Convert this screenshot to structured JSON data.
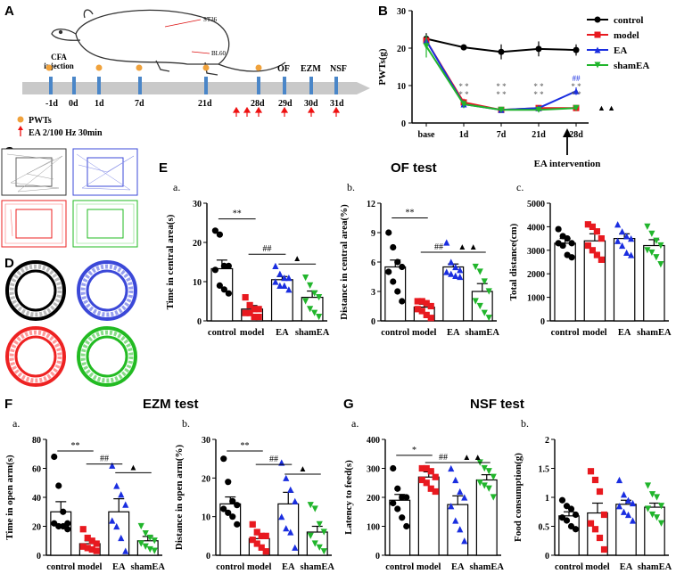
{
  "panels": {
    "A": "A",
    "B": "B",
    "C": "C",
    "D": "D",
    "E": "E",
    "F": "F",
    "G": "G"
  },
  "schematic": {
    "acupoints": [
      "ST36",
      "BL60"
    ],
    "timeline": [
      "-1d",
      "0d",
      "1d",
      "7d",
      "21d",
      "28d",
      "29d",
      "30d",
      "31d"
    ],
    "cfa_label": "CFA\ninjection",
    "tests": [
      "OF",
      "EZM",
      "NSF"
    ],
    "legend_pwts": "PWTs",
    "legend_ea": "EA 2/100 Hz  30min"
  },
  "groups": [
    "control",
    "model",
    "EA",
    "shamEA"
  ],
  "colors": {
    "control": "#000000",
    "model": "#e8191f",
    "EA": "#1a2ee0",
    "shamEA": "#21b52c"
  },
  "titles": {
    "of": "OF test",
    "ezm": "EZM test",
    "nsf": "NSF test"
  },
  "chart_data": [
    {
      "id": "B",
      "type": "line",
      "ylabel": "PWTs(g)",
      "categories": [
        "base",
        "1d",
        "7d",
        "21d",
        "28d"
      ],
      "ylim": [
        0,
        30
      ],
      "yticks": [
        0,
        10,
        20,
        30
      ],
      "series": [
        {
          "name": "control",
          "values": [
            22.5,
            20.2,
            19,
            19.8,
            19.5
          ],
          "err": [
            1.5,
            0.8,
            2,
            2,
            1.5
          ]
        },
        {
          "name": "model",
          "values": [
            22,
            5.5,
            3.5,
            4,
            4
          ],
          "err": [
            1.5,
            1,
            0.5,
            0.5,
            0.5
          ]
        },
        {
          "name": "EA",
          "values": [
            22,
            5,
            3.5,
            4,
            8.5
          ],
          "err": [
            1.5,
            1,
            0.5,
            0.5,
            1
          ]
        },
        {
          "name": "shamEA",
          "values": [
            20.5,
            5,
            3.5,
            3.5,
            4
          ],
          "err": [
            3,
            1,
            0.5,
            0.5,
            0.5
          ]
        }
      ],
      "annotation": "EA intervention",
      "sig": [
        {
          "cat": 1,
          "text": "* *\n* *"
        },
        {
          "cat": 2,
          "text": "* *\n* *"
        },
        {
          "cat": 3,
          "text": "* *\n* *"
        },
        {
          "cat": 4,
          "text": "##\n* *\n* *"
        }
      ],
      "tri": "▲ ▲"
    },
    {
      "id": "Ea",
      "type": "scatter",
      "sublabel": "a.",
      "ylabel": "Time in central area(s)",
      "categories": [
        "control",
        "model",
        "EA",
        "shamEA"
      ],
      "ylim": [
        0,
        30
      ],
      "yticks": [
        0,
        10,
        20,
        30
      ],
      "means": [
        13.3,
        3,
        10.5,
        6
      ],
      "sem": [
        2.2,
        0.9,
        0.8,
        1.6
      ],
      "points": [
        [
          23,
          22,
          14,
          14,
          13,
          9,
          8,
          7
        ],
        [
          6,
          4,
          3,
          3,
          2,
          2,
          1,
          1
        ],
        [
          14,
          12,
          11,
          11,
          10,
          9,
          9,
          8
        ],
        [
          11,
          9,
          7,
          6,
          5,
          3,
          2,
          1
        ]
      ],
      "sig": [
        {
          "a": 0,
          "b": 1,
          "text": "**",
          "y": 26
        },
        {
          "a": 1,
          "b": 2,
          "text": "##",
          "y": 17
        },
        {
          "a": 2,
          "b": 3,
          "text": "▲",
          "y": 14.5
        }
      ]
    },
    {
      "id": "Eb",
      "type": "scatter",
      "sublabel": "b.",
      "ylabel": "Distance in central area(%)",
      "categories": [
        "control",
        "model",
        "EA",
        "shamEA"
      ],
      "ylim": [
        0,
        12
      ],
      "yticks": [
        0,
        3,
        6,
        9,
        12
      ],
      "means": [
        5.5,
        1.4,
        5.5,
        3
      ],
      "sem": [
        0.7,
        0.3,
        0.3,
        0.8
      ],
      "points": [
        [
          9,
          7.5,
          6,
          5.5,
          5,
          4,
          3,
          2
        ],
        [
          2,
          2,
          1.8,
          1.5,
          1.2,
          1,
          0.6,
          0.3
        ],
        [
          8,
          6,
          5.5,
          5.2,
          5,
          4.8,
          4.6,
          4.5
        ],
        [
          5.5,
          5,
          4,
          3,
          2,
          1.5,
          0.8,
          0.3
        ]
      ],
      "sig": [
        {
          "a": 0,
          "b": 1,
          "text": "**",
          "y": 10.5
        },
        {
          "a": 1,
          "b": 2,
          "text": "##",
          "y": 7
        },
        {
          "a": 2,
          "b": 3,
          "text": "▲ ▲",
          "y": 7
        }
      ]
    },
    {
      "id": "Ec",
      "type": "scatter",
      "sublabel": "c.",
      "ylabel": "Total distance(cm)",
      "categories": [
        "control",
        "model",
        "EA",
        "shamEA"
      ],
      "ylim": [
        0,
        5000
      ],
      "yticks": [
        0,
        1000,
        2000,
        3000,
        4000,
        5000
      ],
      "means": [
        3300,
        3400,
        3500,
        3200
      ],
      "sem": [
        200,
        300,
        200,
        250
      ],
      "points": [
        [
          3900,
          3600,
          3500,
          3300,
          3300,
          3200,
          2800,
          2700
        ],
        [
          4100,
          4000,
          3800,
          3500,
          3200,
          3000,
          2800,
          2600
        ],
        [
          4100,
          3800,
          3600,
          3500,
          3400,
          3200,
          2900,
          2800
        ],
        [
          4000,
          3700,
          3400,
          3200,
          3000,
          2900,
          2700,
          2400
        ]
      ],
      "sig": []
    },
    {
      "id": "Fa",
      "type": "scatter",
      "sublabel": "a.",
      "ylabel": "Time in open arm(s)",
      "categories": [
        "control",
        "model",
        "EA",
        "shamEA"
      ],
      "ylim": [
        0,
        80
      ],
      "yticks": [
        0,
        20,
        40,
        60,
        80
      ],
      "means": [
        30,
        8,
        30,
        10
      ],
      "sem": [
        7,
        2,
        9,
        3
      ],
      "points": [
        [
          68,
          48,
          30,
          22,
          22,
          20,
          20,
          18
        ],
        [
          18,
          12,
          10,
          8,
          6,
          5,
          4,
          3
        ],
        [
          62,
          48,
          42,
          35,
          24,
          20,
          12,
          3
        ],
        [
          20,
          15,
          12,
          10,
          8,
          6,
          4,
          3
        ]
      ],
      "sig": [
        {
          "a": 0,
          "b": 1,
          "text": "**",
          "y": 72
        },
        {
          "a": 1,
          "b": 2,
          "text": "##",
          "y": 63
        },
        {
          "a": 2,
          "b": 3,
          "text": "▲",
          "y": 57
        }
      ]
    },
    {
      "id": "Fb",
      "type": "scatter",
      "sublabel": "b.",
      "ylabel": "Distance in open arm(%)",
      "categories": [
        "control",
        "model",
        "EA",
        "shamEA"
      ],
      "ylim": [
        0,
        30
      ],
      "yticks": [
        0,
        10,
        20,
        30
      ],
      "means": [
        13.3,
        4.3,
        13.3,
        6
      ],
      "sem": [
        1.8,
        1,
        3,
        1.5
      ],
      "points": [
        [
          25,
          19,
          14,
          13,
          12,
          11,
          10,
          8
        ],
        [
          8,
          6,
          5,
          5,
          4,
          3,
          2,
          1
        ],
        [
          24,
          20,
          17,
          14,
          10,
          7,
          6,
          2
        ],
        [
          13,
          12,
          8,
          6,
          5,
          3,
          2,
          1
        ]
      ],
      "sig": [
        {
          "a": 0,
          "b": 1,
          "text": "**",
          "y": 27
        },
        {
          "a": 1,
          "b": 2,
          "text": "##",
          "y": 23.5
        },
        {
          "a": 2,
          "b": 3,
          "text": "▲",
          "y": 21
        }
      ]
    },
    {
      "id": "Ga",
      "type": "scatter",
      "sublabel": "a.",
      "ylabel": "Latency to feed(s)",
      "categories": [
        "control",
        "model",
        "EA",
        "shamEA"
      ],
      "ylim": [
        0,
        400
      ],
      "yticks": [
        0,
        100,
        200,
        300,
        400
      ],
      "means": [
        190,
        270,
        175,
        260
      ],
      "sem": [
        20,
        18,
        30,
        18
      ],
      "points": [
        [
          300,
          230,
          200,
          200,
          180,
          160,
          130,
          100
        ],
        [
          300,
          300,
          290,
          270,
          260,
          250,
          230,
          220
        ],
        [
          300,
          260,
          220,
          200,
          170,
          120,
          90,
          50
        ],
        [
          320,
          300,
          290,
          270,
          250,
          240,
          230,
          200
        ]
      ],
      "sig": [
        {
          "a": 0,
          "b": 1,
          "text": "*",
          "y": 345
        },
        {
          "a": 1,
          "b": 2,
          "text": "##",
          "y": 320
        },
        {
          "a": 2,
          "b": 3,
          "text": "▲ ▲",
          "y": 320
        }
      ]
    },
    {
      "id": "Gb",
      "type": "scatter",
      "sublabel": "b.",
      "ylabel": "Food consumption(g)",
      "categories": [
        "control",
        "model",
        "EA",
        "shamEA"
      ],
      "ylim": [
        0,
        2.0
      ],
      "yticks": [
        0.0,
        0.5,
        1.0,
        1.5,
        2.0
      ],
      "means": [
        0.68,
        0.73,
        0.88,
        0.83
      ],
      "sem": [
        0.07,
        0.17,
        0.07,
        0.07
      ],
      "points": [
        [
          0.95,
          0.85,
          0.8,
          0.7,
          0.65,
          0.6,
          0.5,
          0.45
        ],
        [
          1.45,
          1.3,
          1.1,
          0.7,
          0.55,
          0.45,
          0.3,
          0.1
        ],
        [
          1.3,
          1.05,
          0.95,
          0.9,
          0.85,
          0.75,
          0.7,
          0.6
        ],
        [
          1.2,
          1.05,
          1.0,
          0.85,
          0.8,
          0.7,
          0.65,
          0.55
        ]
      ],
      "sig": []
    }
  ]
}
